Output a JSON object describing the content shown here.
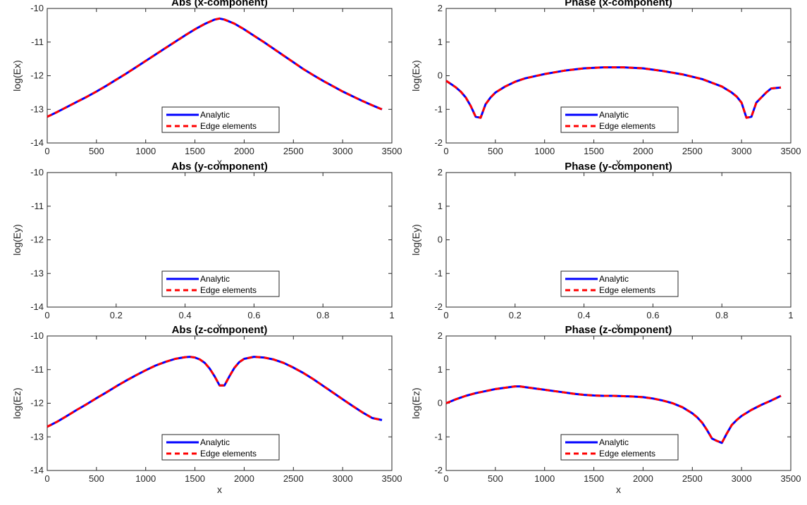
{
  "chart_data": [
    {
      "type": "line",
      "title": "Abs (x-component)",
      "xlabel": "x",
      "ylabel": "log(Ex)",
      "xlim": [
        0,
        3500
      ],
      "ylim": [
        -14,
        -10
      ],
      "xticks": [
        "0",
        "500",
        "1000",
        "1500",
        "2000",
        "2500",
        "3000",
        "3500"
      ],
      "yticks": [
        "-14",
        "-13",
        "-12",
        "-11",
        "-10"
      ],
      "legend": "bottom-center",
      "series": [
        {
          "name": "Analytic",
          "color": "#0000ff",
          "style": "solid",
          "x": [
            0,
            100,
            200,
            300,
            400,
            500,
            600,
            700,
            800,
            900,
            1000,
            1100,
            1200,
            1300,
            1400,
            1500,
            1600,
            1700,
            1750,
            1800,
            1900,
            2000,
            2100,
            2200,
            2300,
            2400,
            2500,
            2600,
            2700,
            2800,
            2900,
            3000,
            3100,
            3200,
            3300,
            3400
          ],
          "y": [
            -13.22,
            -13.08,
            -12.93,
            -12.78,
            -12.63,
            -12.47,
            -12.3,
            -12.12,
            -11.94,
            -11.75,
            -11.56,
            -11.37,
            -11.18,
            -10.99,
            -10.8,
            -10.62,
            -10.46,
            -10.33,
            -10.3,
            -10.33,
            -10.45,
            -10.62,
            -10.81,
            -11.0,
            -11.2,
            -11.4,
            -11.6,
            -11.8,
            -11.98,
            -12.15,
            -12.31,
            -12.47,
            -12.61,
            -12.75,
            -12.88,
            -13.0
          ]
        },
        {
          "name": "Edge elements",
          "color": "#ff0000",
          "style": "dashed",
          "x": [
            0,
            100,
            200,
            300,
            400,
            500,
            600,
            700,
            800,
            900,
            1000,
            1100,
            1200,
            1300,
            1400,
            1500,
            1600,
            1700,
            1750,
            1800,
            1900,
            2000,
            2100,
            2200,
            2300,
            2400,
            2500,
            2600,
            2700,
            2800,
            2900,
            3000,
            3100,
            3200,
            3300,
            3400
          ],
          "y": [
            -13.22,
            -13.08,
            -12.93,
            -12.78,
            -12.63,
            -12.47,
            -12.3,
            -12.12,
            -11.94,
            -11.75,
            -11.56,
            -11.37,
            -11.18,
            -10.99,
            -10.8,
            -10.62,
            -10.46,
            -10.33,
            -10.3,
            -10.33,
            -10.45,
            -10.62,
            -10.81,
            -11.0,
            -11.2,
            -11.4,
            -11.6,
            -11.8,
            -11.98,
            -12.15,
            -12.31,
            -12.47,
            -12.61,
            -12.75,
            -12.88,
            -13.0
          ]
        }
      ]
    },
    {
      "type": "line",
      "title": "Phase (x-component)",
      "xlabel": "x",
      "ylabel": "log(Ex)",
      "xlim": [
        0,
        3500
      ],
      "ylim": [
        -2,
        2
      ],
      "xticks": [
        "0",
        "500",
        "1000",
        "1500",
        "2000",
        "2500",
        "3000",
        "3500"
      ],
      "yticks": [
        "-2",
        "-1",
        "0",
        "1",
        "2"
      ],
      "legend": "bottom-center",
      "series": [
        {
          "name": "Analytic",
          "color": "#0000ff",
          "style": "solid",
          "x": [
            0,
            50,
            100,
            150,
            200,
            250,
            300,
            350,
            400,
            450,
            500,
            600,
            700,
            800,
            1000,
            1200,
            1400,
            1600,
            1800,
            2000,
            2200,
            2400,
            2600,
            2800,
            2900,
            2950,
            3000,
            3050,
            3100,
            3150,
            3200,
            3250,
            3300,
            3400
          ],
          "y": [
            -0.15,
            -0.25,
            -0.35,
            -0.48,
            -0.65,
            -0.9,
            -1.22,
            -1.25,
            -0.85,
            -0.65,
            -0.5,
            -0.32,
            -0.18,
            -0.08,
            0.05,
            0.15,
            0.22,
            0.25,
            0.25,
            0.22,
            0.14,
            0.04,
            -0.1,
            -0.32,
            -0.5,
            -0.62,
            -0.8,
            -1.25,
            -1.22,
            -0.8,
            -0.65,
            -0.5,
            -0.38,
            -0.35
          ]
        },
        {
          "name": "Edge elements",
          "color": "#ff0000",
          "style": "dashed",
          "x": [
            0,
            50,
            100,
            150,
            200,
            250,
            300,
            350,
            400,
            450,
            500,
            600,
            700,
            800,
            1000,
            1200,
            1400,
            1600,
            1800,
            2000,
            2200,
            2400,
            2600,
            2800,
            2900,
            2950,
            3000,
            3050,
            3100,
            3150,
            3200,
            3250,
            3300,
            3400
          ],
          "y": [
            -0.15,
            -0.25,
            -0.35,
            -0.48,
            -0.65,
            -0.9,
            -1.22,
            -1.25,
            -0.85,
            -0.65,
            -0.5,
            -0.32,
            -0.18,
            -0.08,
            0.05,
            0.15,
            0.22,
            0.25,
            0.25,
            0.22,
            0.14,
            0.04,
            -0.1,
            -0.32,
            -0.5,
            -0.62,
            -0.8,
            -1.25,
            -1.22,
            -0.8,
            -0.65,
            -0.5,
            -0.38,
            -0.35
          ]
        }
      ]
    },
    {
      "type": "line",
      "title": "Abs (y-component)",
      "xlabel": "x",
      "ylabel": "log(Ey)",
      "xlim": [
        0,
        1
      ],
      "ylim": [
        -14,
        -10
      ],
      "xticks": [
        "0",
        "0.2",
        "0.4",
        "0.6",
        "0.8",
        "1"
      ],
      "yticks": [
        "-14",
        "-13",
        "-12",
        "-11",
        "-10"
      ],
      "legend": "bottom-center",
      "series": [
        {
          "name": "Analytic",
          "color": "#0000ff",
          "style": "solid",
          "x": [],
          "y": []
        },
        {
          "name": "Edge elements",
          "color": "#ff0000",
          "style": "dashed",
          "x": [],
          "y": []
        }
      ]
    },
    {
      "type": "line",
      "title": "Phase (y-component)",
      "xlabel": "x",
      "ylabel": "log(Ey)",
      "xlim": [
        0,
        1
      ],
      "ylim": [
        -2,
        2
      ],
      "xticks": [
        "0",
        "0.2",
        "0.4",
        "0.6",
        "0.8",
        "1"
      ],
      "yticks": [
        "-2",
        "-1",
        "0",
        "1",
        "2"
      ],
      "legend": "bottom-center",
      "series": [
        {
          "name": "Analytic",
          "color": "#0000ff",
          "style": "solid",
          "x": [],
          "y": []
        },
        {
          "name": "Edge elements",
          "color": "#ff0000",
          "style": "dashed",
          "x": [],
          "y": []
        }
      ]
    },
    {
      "type": "line",
      "title": "Abs (z-component)",
      "xlabel": "x",
      "ylabel": "log(Ez)",
      "xlim": [
        0,
        3500
      ],
      "ylim": [
        -14,
        -10
      ],
      "xticks": [
        "0",
        "500",
        "1000",
        "1500",
        "2000",
        "2500",
        "3000",
        "3500"
      ],
      "yticks": [
        "-14",
        "-13",
        "-12",
        "-11",
        "-10"
      ],
      "legend": "bottom-center",
      "series": [
        {
          "name": "Analytic",
          "color": "#0000ff",
          "style": "solid",
          "x": [
            0,
            100,
            200,
            300,
            400,
            500,
            600,
            700,
            800,
            900,
            1000,
            1100,
            1200,
            1300,
            1400,
            1450,
            1500,
            1550,
            1600,
            1650,
            1700,
            1750,
            1800,
            1850,
            1900,
            1950,
            2000,
            2100,
            2200,
            2300,
            2400,
            2500,
            2600,
            2700,
            2800,
            2900,
            3000,
            3100,
            3200,
            3300,
            3400
          ],
          "y": [
            -12.7,
            -12.55,
            -12.38,
            -12.2,
            -12.03,
            -11.85,
            -11.68,
            -11.5,
            -11.33,
            -11.17,
            -11.02,
            -10.88,
            -10.77,
            -10.68,
            -10.63,
            -10.62,
            -10.64,
            -10.7,
            -10.8,
            -10.97,
            -11.2,
            -11.47,
            -11.47,
            -11.2,
            -10.95,
            -10.78,
            -10.68,
            -10.62,
            -10.64,
            -10.7,
            -10.8,
            -10.94,
            -11.1,
            -11.28,
            -11.48,
            -11.68,
            -11.88,
            -12.08,
            -12.27,
            -12.44,
            -12.5
          ]
        },
        {
          "name": "Edge elements",
          "color": "#ff0000",
          "style": "dashed",
          "x": [
            0,
            100,
            200,
            300,
            400,
            500,
            600,
            700,
            800,
            900,
            1000,
            1100,
            1200,
            1300,
            1400,
            1450,
            1500,
            1550,
            1600,
            1650,
            1700,
            1750,
            1800,
            1850,
            1900,
            1950,
            2000,
            2100,
            2200,
            2300,
            2400,
            2500,
            2600,
            2700,
            2800,
            2900,
            3000,
            3100,
            3200,
            3300,
            3400
          ],
          "y": [
            -12.7,
            -12.55,
            -12.38,
            -12.2,
            -12.03,
            -11.85,
            -11.68,
            -11.5,
            -11.33,
            -11.17,
            -11.02,
            -10.88,
            -10.77,
            -10.68,
            -10.63,
            -10.62,
            -10.64,
            -10.7,
            -10.8,
            -10.97,
            -11.2,
            -11.47,
            -11.47,
            -11.2,
            -10.95,
            -10.78,
            -10.68,
            -10.62,
            -10.64,
            -10.7,
            -10.8,
            -10.94,
            -11.1,
            -11.28,
            -11.48,
            -11.68,
            -11.88,
            -12.08,
            -12.27,
            -12.44,
            -12.5
          ]
        }
      ]
    },
    {
      "type": "line",
      "title": "Phase (z-component)",
      "xlabel": "x",
      "ylabel": "log(Ez)",
      "xlim": [
        0,
        3500
      ],
      "ylim": [
        -2,
        2
      ],
      "xticks": [
        "0",
        "500",
        "1000",
        "1500",
        "2000",
        "2500",
        "3000",
        "3500"
      ],
      "yticks": [
        "-2",
        "-1",
        "0",
        "1",
        "2"
      ],
      "legend": "bottom-center",
      "series": [
        {
          "name": "Analytic",
          "color": "#0000ff",
          "style": "solid",
          "x": [
            0,
            100,
            200,
            300,
            400,
            500,
            600,
            700,
            750,
            800,
            900,
            1000,
            1100,
            1200,
            1300,
            1400,
            1500,
            1600,
            1700,
            1800,
            1900,
            2000,
            2100,
            2200,
            2300,
            2400,
            2500,
            2550,
            2600,
            2650,
            2700,
            2750,
            2800,
            2850,
            2900,
            2950,
            3000,
            3100,
            3200,
            3300,
            3400
          ],
          "y": [
            0.0,
            0.12,
            0.22,
            0.3,
            0.36,
            0.42,
            0.46,
            0.5,
            0.5,
            0.48,
            0.44,
            0.4,
            0.36,
            0.32,
            0.28,
            0.25,
            0.23,
            0.22,
            0.22,
            0.21,
            0.2,
            0.18,
            0.14,
            0.08,
            0.0,
            -0.12,
            -0.3,
            -0.42,
            -0.58,
            -0.8,
            -1.05,
            -1.12,
            -1.18,
            -0.9,
            -0.65,
            -0.5,
            -0.38,
            -0.2,
            -0.05,
            0.08,
            0.22
          ]
        },
        {
          "name": "Edge elements",
          "color": "#ff0000",
          "style": "dashed",
          "x": [
            0,
            100,
            200,
            300,
            400,
            500,
            600,
            700,
            750,
            800,
            900,
            1000,
            1100,
            1200,
            1300,
            1400,
            1500,
            1600,
            1700,
            1800,
            1900,
            2000,
            2100,
            2200,
            2300,
            2400,
            2500,
            2550,
            2600,
            2650,
            2700,
            2750,
            2800,
            2850,
            2900,
            2950,
            3000,
            3100,
            3200,
            3300,
            3400
          ],
          "y": [
            0.0,
            0.12,
            0.22,
            0.3,
            0.36,
            0.42,
            0.46,
            0.5,
            0.5,
            0.48,
            0.44,
            0.4,
            0.36,
            0.32,
            0.28,
            0.25,
            0.23,
            0.22,
            0.22,
            0.21,
            0.2,
            0.18,
            0.14,
            0.08,
            0.0,
            -0.12,
            -0.3,
            -0.42,
            -0.58,
            -0.8,
            -1.05,
            -1.12,
            -1.18,
            -0.9,
            -0.65,
            -0.5,
            -0.38,
            -0.2,
            -0.05,
            0.08,
            0.22
          ]
        }
      ]
    }
  ]
}
